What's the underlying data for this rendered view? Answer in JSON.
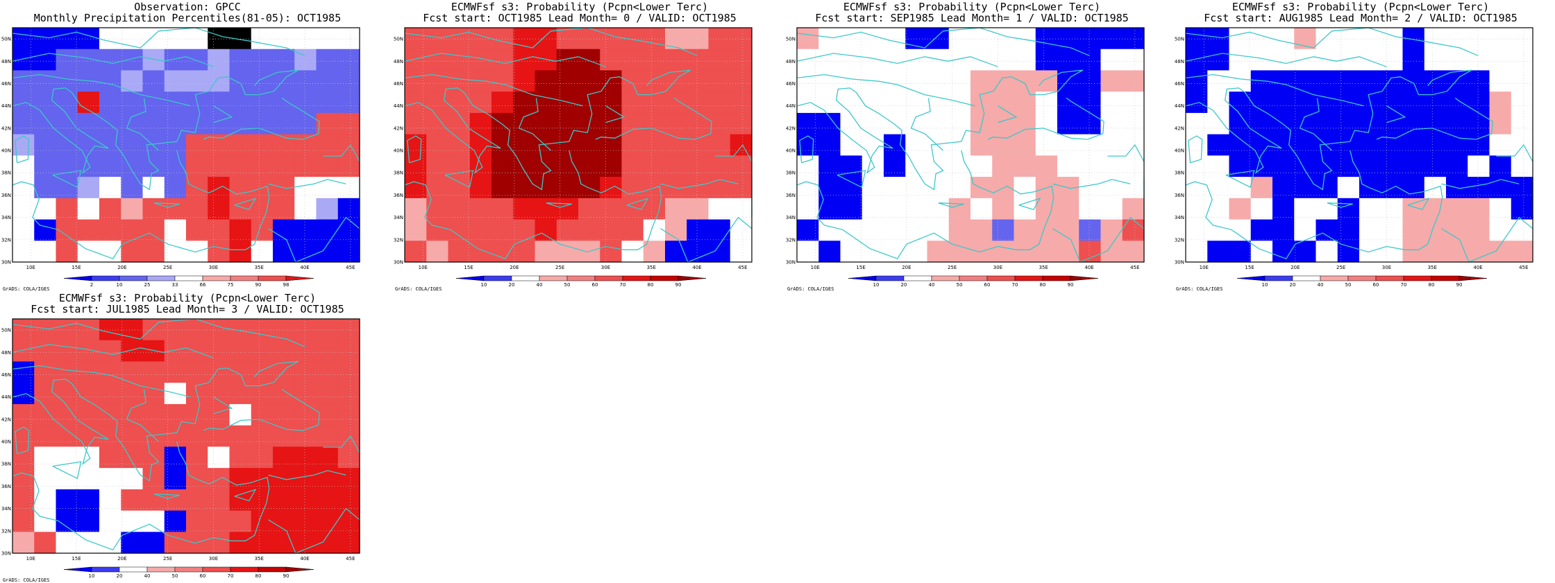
{
  "colors": {
    "blue_dark": "#0000f5",
    "blue_mid": "#3c3cf0",
    "blue_light": "#6464ee",
    "blue_pale": "#a9a9f6",
    "white": "#ffffff",
    "red_pale": "#f6aaaa",
    "red_light": "#f28080",
    "red_mid": "#ee4f4f",
    "red_dark": "#e61414",
    "red_darker": "#c60000",
    "red_darkest": "#a00000",
    "coast": "#3cc8c8",
    "grid": "#c8c8c8"
  },
  "map_axes": {
    "lat_labels": [
      "30N",
      "32N",
      "34N",
      "36N",
      "38N",
      "40N",
      "42N",
      "44N",
      "46N",
      "48N",
      "50N"
    ],
    "lon_labels": [
      "10E",
      "15E",
      "20E",
      "25E",
      "30E",
      "35E",
      "40E",
      "45E"
    ]
  },
  "credit": "GrADS: COLA/IGES",
  "panels": [
    {
      "title1": "Observation: GPCC",
      "title2": "Monthly Precipitation Percentiles(81-05): OCT1985",
      "colorbar_ticks": [
        "2",
        "10",
        "25",
        "33",
        "66",
        "75",
        "90",
        "98"
      ],
      "colorbar_colors": [
        "blue_dark",
        "blue_mid",
        "blue_light",
        "blue_pale",
        "white",
        "red_pale",
        "red_light",
        "red_mid",
        "red_dark"
      ],
      "grid": [
        "DDDD00000EE00000",
        "DDLLLLPLLPLLLPLL",
        "LLLLLPLPPPLLLLLL",
        "LLLMLLLLLLLLLLLL",
        "LLLLLLLLLLLLLLRR",
        "PLLLLLLLRRRRRRRR",
        "0LLLLLLLRRRRRRRR",
        "0LLP0L0LRMRRR000",
        "00R0RpRRRMRRR0PD",
        "0DRRRRR0RRMRDDDD",
        "00R00RR00RM0DDDD"
      ]
    },
    {
      "title1": "ECMWFsf s3: Probability (Pcpn<Lower Terc)",
      "title2": "Fcst start: OCT1985  Lead Month= 0 / VALID: OCT1985",
      "colorbar_ticks": [
        "10",
        "20",
        "40",
        "50",
        "60",
        "70",
        "80",
        "90"
      ],
      "colorbar_colors": [
        "blue_dark",
        "blue_mid",
        "white",
        "red_pale",
        "red_light",
        "red_mid",
        "red_dark",
        "red_darker",
        "red_darkest"
      ],
      "grid": [
        "RRRRRMMRRRRRppRR",
        "RRRRRMMXXRRRRRRR",
        "RRRRRMXXXXRRRRRR",
        "RRRRMXXXXXRRRRRR",
        "RRRMXXXXXXRRRRRR",
        "MRRMXXXXXXRRRRRM",
        "MRRMXXXXXXRRRRRR",
        "MRRMXXXXXMRRRRRR",
        "pRRRRMMMRRRRpp00",
        "pRRRRRMRRRR0pDD0",
        "RpRRRRpppR0pDDD0"
      ]
    },
    {
      "title1": "ECMWFsf s3: Probability (Pcpn<Lower Terc)",
      "title2": "Fcst start: SEP1985  Lead Month= 1 / VALID: OCT1985",
      "colorbar_ticks": [
        "10",
        "20",
        "40",
        "50",
        "60",
        "70",
        "80",
        "90"
      ],
      "colorbar_colors": [
        "blue_dark",
        "blue_mid",
        "white",
        "red_pale",
        "red_light",
        "red_mid",
        "red_dark",
        "red_darker",
        "red_darkest"
      ],
      "grid": [
        "p0000DD0000DDDDD",
        "00000000000DDD00",
        "00000000ppppDDpp",
        "00000000ppp0DD00",
        "DD000000ppp0DD00",
        "DD00D000ppp00000",
        "0DD0D0000ppp0000",
        "0DD00000pp0pp000",
        "0DD0000p0p0pp00p",
        "D000000ppLpppLpR",
        "0D0000pppppppRpp"
      ]
    },
    {
      "title1": "ECMWFsf s3: Probability (Pcpn<Lower Terc)",
      "title2": "Fcst start: AUG1985  Lead Month= 2 / VALID: OCT1985",
      "colorbar_ticks": [
        "10",
        "20",
        "40",
        "50",
        "60",
        "70",
        "80",
        "90"
      ],
      "colorbar_colors": [
        "blue_dark",
        "blue_mid",
        "white",
        "red_pale",
        "red_light",
        "red_mid",
        "red_dark",
        "red_darker",
        "red_darkest"
      ],
      "grid": [
        "DD000p0000D00000",
        "DD00000000D00000",
        "D00DDDDDDDDDDD00",
        "D0DDDDDDDDDDDDp0",
        "00DDDDDDDDDDDDp0",
        "0DDDDDDDDDDDDD00",
        "00DDDDDDDDDDD0D0",
        "000pDDD0DDD0DDDD",
        "00p0D00D00pppp0D",
        "000DD0DD00pppp00",
        "0DD0DD0D00pppppp"
      ]
    },
    {
      "title1": "ECMWFsf s3: Probability (Pcpn<Lower Terc)",
      "title2": "Fcst start: JUL1985  Lead Month= 3 / VALID: OCT1985",
      "colorbar_ticks": [
        "10",
        "20",
        "40",
        "50",
        "60",
        "70",
        "80",
        "90"
      ],
      "colorbar_colors": [
        "blue_dark",
        "blue_mid",
        "white",
        "red_pale",
        "red_light",
        "red_mid",
        "red_dark",
        "red_darker",
        "red_darkest"
      ],
      "grid": [
        "RRRRMMRRRRRRRRRR",
        "RRRRRMMRRRRRRRRR",
        "DRRRRRRRRRRRRRRR",
        "DRRRRRR0RRRRRRRR",
        "RRRRRRRRRR0RRRRR",
        "RRRRRRRRRRRRRRRR",
        "R000RRRDR0RRMMMR",
        "R00000RDRRMMMMMM",
        "R0DD0RRRRRMMMMMM",
        "R0DD000DRRRMMMMM",
        "pR000DDRRRMMMMMM"
      ]
    }
  ]
}
